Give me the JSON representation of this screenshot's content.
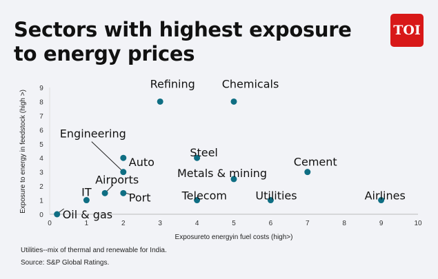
{
  "header": {
    "title_line1": "Sectors with highest exposure",
    "title_line2": "to energy prices",
    "logo": "TOI"
  },
  "chart_data": {
    "type": "scatter",
    "xlabel": "Exposureto energyin fuel costs (high>)",
    "ylabel": "Exposure to energy in feedstock (high >)",
    "xlim": [
      0,
      10
    ],
    "ylim": [
      0,
      9
    ],
    "xticks": [
      0,
      1,
      2,
      3,
      4,
      5,
      6,
      7,
      8,
      9,
      10
    ],
    "yticks": [
      0,
      1,
      2,
      3,
      4,
      5,
      6,
      7,
      8,
      9
    ],
    "grid": false,
    "color": "#0f6e83",
    "points": [
      {
        "label": "Oil & gas",
        "x": 0.2,
        "y": 0
      },
      {
        "label": "IT",
        "x": 1,
        "y": 1
      },
      {
        "label": "Airports",
        "x": 1.5,
        "y": 1.5
      },
      {
        "label": "Port",
        "x": 2,
        "y": 1.5
      },
      {
        "label": "Engineering",
        "x": 2,
        "y": 3
      },
      {
        "label": "Auto",
        "x": 2,
        "y": 4
      },
      {
        "label": "Refining",
        "x": 3,
        "y": 8
      },
      {
        "label": "Chemicals",
        "x": 5,
        "y": 8
      },
      {
        "label": "Steel",
        "x": 4,
        "y": 4
      },
      {
        "label": "Metals & mining",
        "x": 5,
        "y": 2.5
      },
      {
        "label": "Telecom",
        "x": 4,
        "y": 1
      },
      {
        "label": "Utilities",
        "x": 6,
        "y": 1
      },
      {
        "label": "Cement",
        "x": 7,
        "y": 3
      },
      {
        "label": "Airlines",
        "x": 9,
        "y": 1
      }
    ]
  },
  "footer": {
    "note": "Utilities--mix of thermal and renewable for India.",
    "source": "Source: S&P Global Ratings."
  }
}
